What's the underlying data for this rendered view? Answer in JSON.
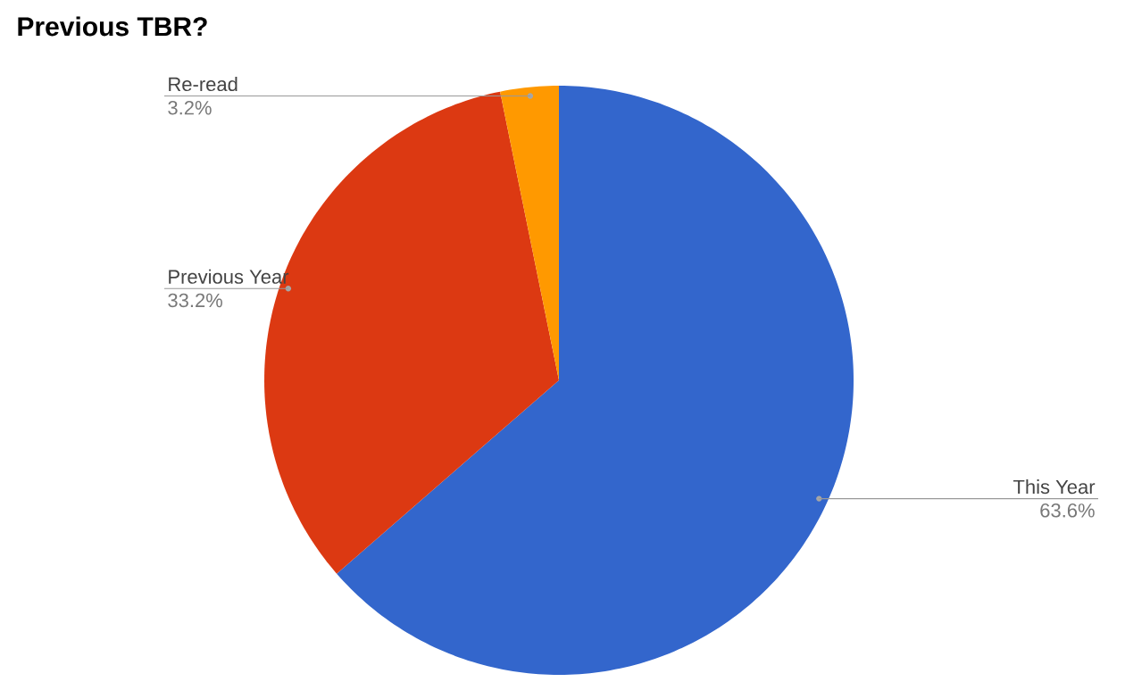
{
  "chart_data": {
    "type": "pie",
    "title": "Previous TBR?",
    "categories": [
      "This Year",
      "Previous Year",
      "Re-read"
    ],
    "values": [
      63.6,
      33.2,
      3.2
    ],
    "value_labels": [
      "63.6%",
      "33.2%",
      "3.2%"
    ],
    "colors": [
      "#3366cc",
      "#dc3912",
      "#ff9900"
    ]
  }
}
